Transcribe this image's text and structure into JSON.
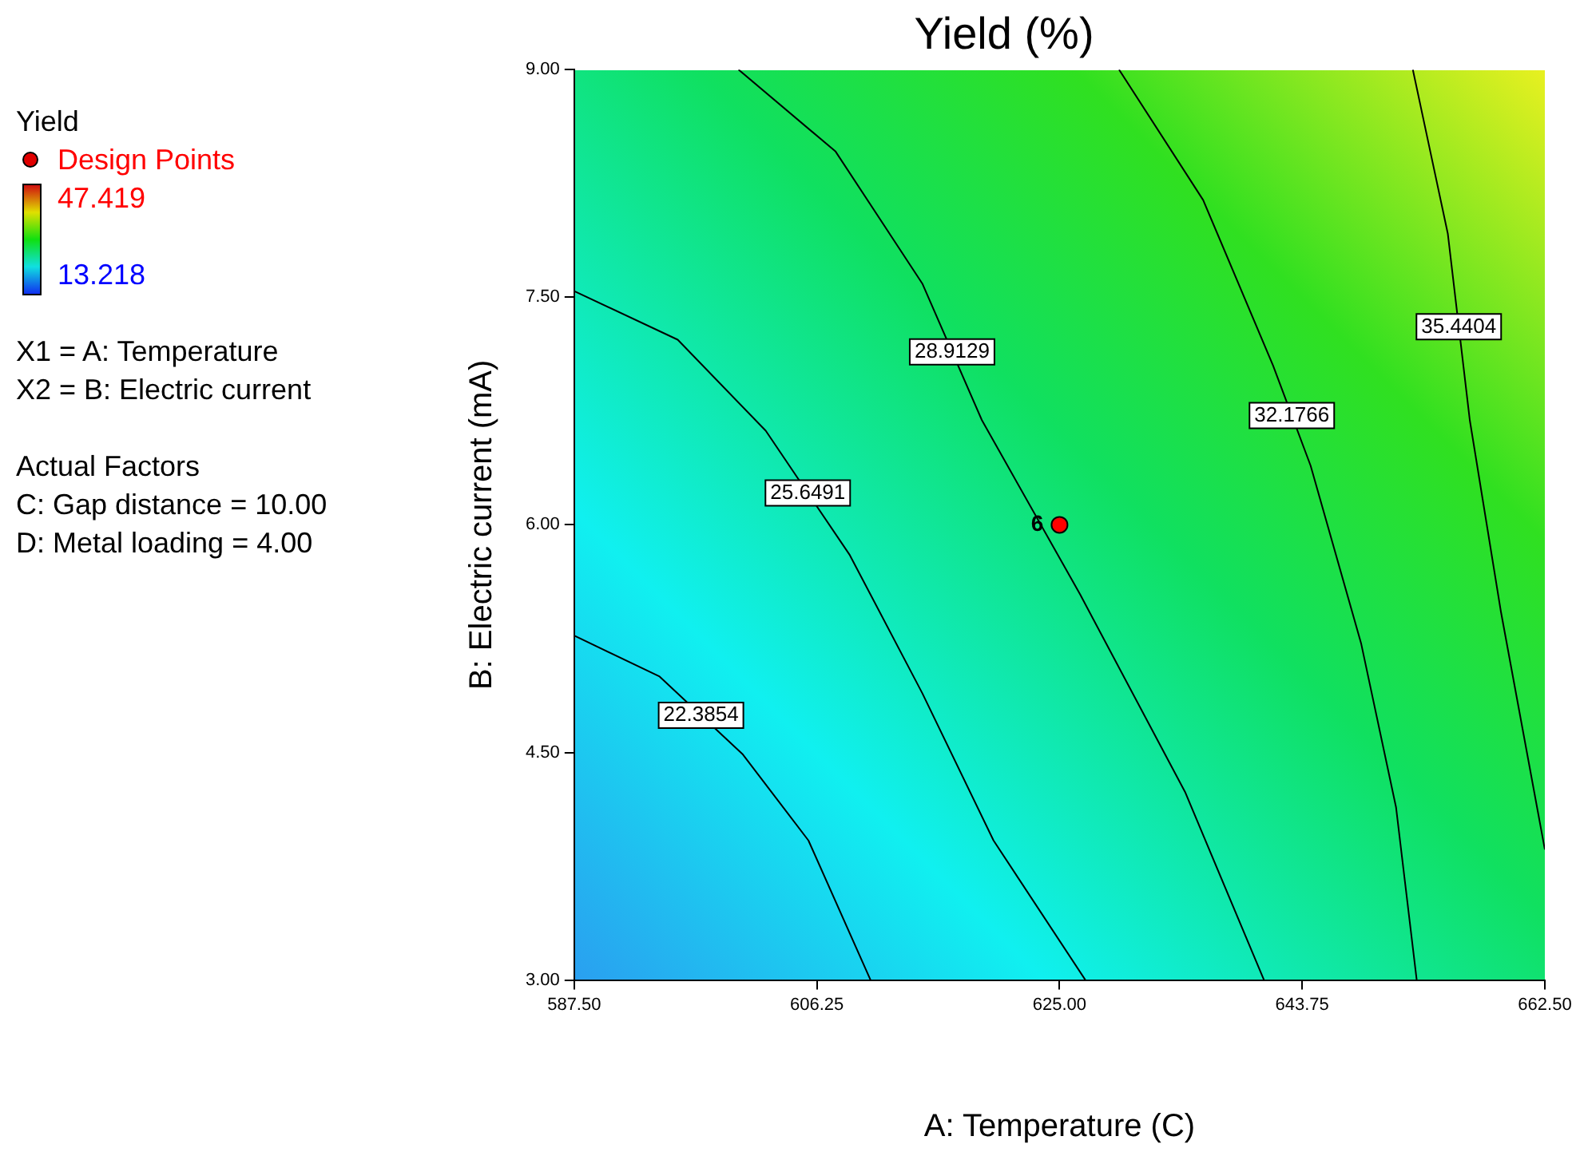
{
  "chart_data": {
    "type": "line",
    "title": "Yield (%)",
    "xlabel": "A: Temperature (C)",
    "ylabel": "B: Electric current (mA)",
    "xlim": [
      587.5,
      662.5
    ],
    "xticks": [
      {
        "value": 587.5,
        "label": "587.50"
      },
      {
        "value": 606.25,
        "label": "606.25"
      },
      {
        "value": 625,
        "label": "625.00"
      },
      {
        "value": 643.75,
        "label": "643.75"
      },
      {
        "value": 662.5,
        "label": "662.50"
      }
    ],
    "ylim": [
      3,
      9
    ],
    "yticks": [
      {
        "value": 3,
        "label": "3.00"
      },
      {
        "value": 4.5,
        "label": "4.50"
      },
      {
        "value": 6,
        "label": "6.00"
      },
      {
        "value": 7.5,
        "label": "7.50"
      },
      {
        "value": 9,
        "label": "9.00"
      }
    ],
    "grid": false,
    "legend": false,
    "marker": "none",
    "line_style": "solid",
    "series": [
      {
        "name": "22.3854",
        "color": "#000000",
        "x": [
          587.5,
          594.1,
          600.5,
          605.6,
          610.4
        ],
        "values": [
          5.27,
          5.0,
          4.49,
          3.92,
          3.0
        ]
      },
      {
        "name": "25.6491",
        "color": "#000000",
        "x": [
          587.5,
          595.5,
          602.3,
          608.8,
          614.4,
          619.9,
          627.0
        ],
        "values": [
          7.54,
          7.22,
          6.62,
          5.8,
          4.89,
          3.92,
          3.0
        ]
      },
      {
        "name": "28.9129",
        "color": "#000000",
        "x": [
          600.2,
          607.7,
          614.4,
          619.0,
          626.6,
          634.7,
          640.8
        ],
        "values": [
          9.0,
          8.46,
          7.59,
          6.69,
          5.54,
          4.24,
          3.0
        ]
      },
      {
        "name": "32.1766",
        "color": "#000000",
        "x": [
          629.6,
          636.1,
          641.5,
          644.4,
          648.3,
          651.0,
          652.6
        ],
        "values": [
          9.0,
          8.14,
          7.05,
          6.39,
          5.22,
          4.14,
          3.0
        ]
      },
      {
        "name": "35.4404",
        "color": "#000000",
        "x": [
          652.3,
          655.0,
          656.7,
          659.1,
          662.5
        ],
        "values": [
          9.0,
          7.92,
          6.69,
          5.43,
          3.86
        ]
      },
      {
        "type": "scatter",
        "marker": "circle",
        "color": "#ff0000",
        "x": [
          625
        ],
        "values": [
          6
        ],
        "value_labels": [
          "6"
        ]
      }
    ],
    "annotations": [
      "Yield",
      "Design Points",
      "47.419",
      "13.218",
      "X1 = A: Temperature",
      "X2 = B: Electric current",
      "Actual Factors",
      "C: Gap distance = 10.00",
      "D: Metal loading = 4.00"
    ]
  }
}
